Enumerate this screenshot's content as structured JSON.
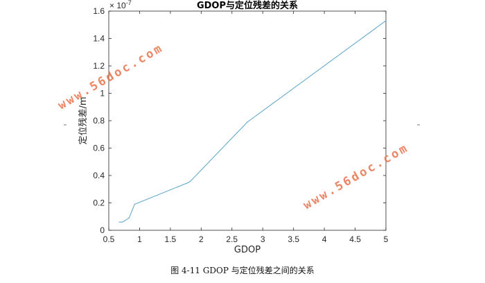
{
  "chart_data": {
    "type": "line",
    "title": "GDOP与定位残差的关系",
    "xlabel": "GDOP",
    "ylabel": "定位残差/m",
    "y_exponent_label": "× 10",
    "y_exponent_power": "-7",
    "xlim": [
      0.5,
      5
    ],
    "ylim": [
      0,
      1.6
    ],
    "xticks": [
      "0.5",
      "1",
      "1.5",
      "2",
      "2.5",
      "3",
      "3.5",
      "4",
      "4.5",
      "5"
    ],
    "xtick_values": [
      0.5,
      1,
      1.5,
      2,
      2.5,
      3,
      3.5,
      4,
      4.5,
      5
    ],
    "yticks": [
      "0",
      "0.2",
      "0.4",
      "0.6",
      "0.8",
      "1",
      "1.2",
      "1.4",
      "1.6"
    ],
    "ytick_values": [
      0,
      0.2,
      0.4,
      0.6,
      0.8,
      1.0,
      1.2,
      1.4,
      1.6
    ],
    "grid": false,
    "series": [
      {
        "x": [
          0.67,
          0.72,
          0.76,
          0.83,
          0.92,
          1.8,
          1.83,
          2.75,
          5.0
        ],
        "y": [
          0.06,
          0.06,
          0.07,
          0.09,
          0.19,
          0.35,
          0.36,
          0.79,
          1.53
        ],
        "color": "#5aa3c8"
      }
    ]
  },
  "watermark_text": "www.56doc.com",
  "caption": "图 4-11 GDOP 与定位残差之间的关系"
}
